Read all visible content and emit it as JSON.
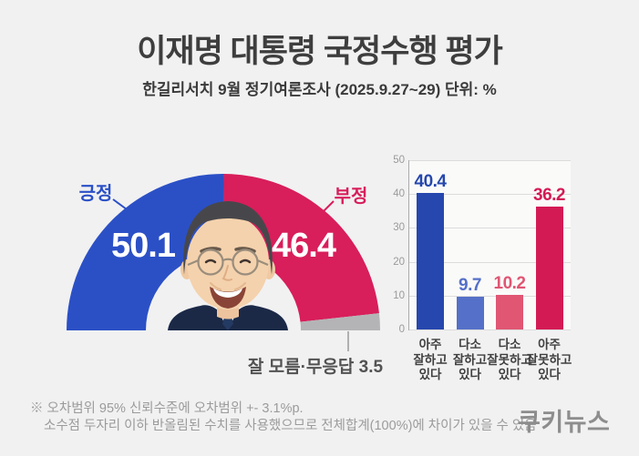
{
  "header": {
    "title": "이재명 대통령 국정수행 평가",
    "subtitle": "한길리서치 9월 정기여론조사 (2025.9.27~29) 단위: %"
  },
  "chart_data": [
    {
      "type": "pie",
      "variant": "half-donut-gauge",
      "center_image": "president-portrait",
      "segments": [
        {
          "label": "긍정",
          "value": 50.1,
          "color": "#2b50c6"
        },
        {
          "label": "부정",
          "value": 46.4,
          "color": "#d81e5b"
        },
        {
          "label": "잘 모름·무응답",
          "value": 3.5,
          "color": "#b4b4b6"
        }
      ]
    },
    {
      "type": "bar",
      "categories": [
        "아주\n잘하고\n있다",
        "다소\n잘하고\n있다",
        "다소\n잘못하고\n있다",
        "아주\n잘못하고\n있다"
      ],
      "values": [
        40.4,
        9.7,
        10.2,
        36.2
      ],
      "colors": [
        "#2647ad",
        "#5570c8",
        "#e05673",
        "#d41a55"
      ],
      "ylim": [
        0,
        50
      ],
      "yticks": [
        0,
        10,
        20,
        30,
        40,
        50
      ],
      "grid": true,
      "legend": "none",
      "ylabel": ""
    }
  ],
  "footnote": {
    "line1": "※ 오차범위 95% 신뢰수준에 오차범위 +- 3.1%p.",
    "line2": "소수점 두자리 이하 반올림된 수치를 사용했으므로 전체합계(100%)에 차이가 있을 수 있음"
  },
  "logo": {
    "text": "쿠키뉴스"
  },
  "colors": {
    "background": "#f1f1f2",
    "positive": "#2b50c6",
    "negative": "#d81e5b",
    "neutral": "#b4b4b6"
  }
}
